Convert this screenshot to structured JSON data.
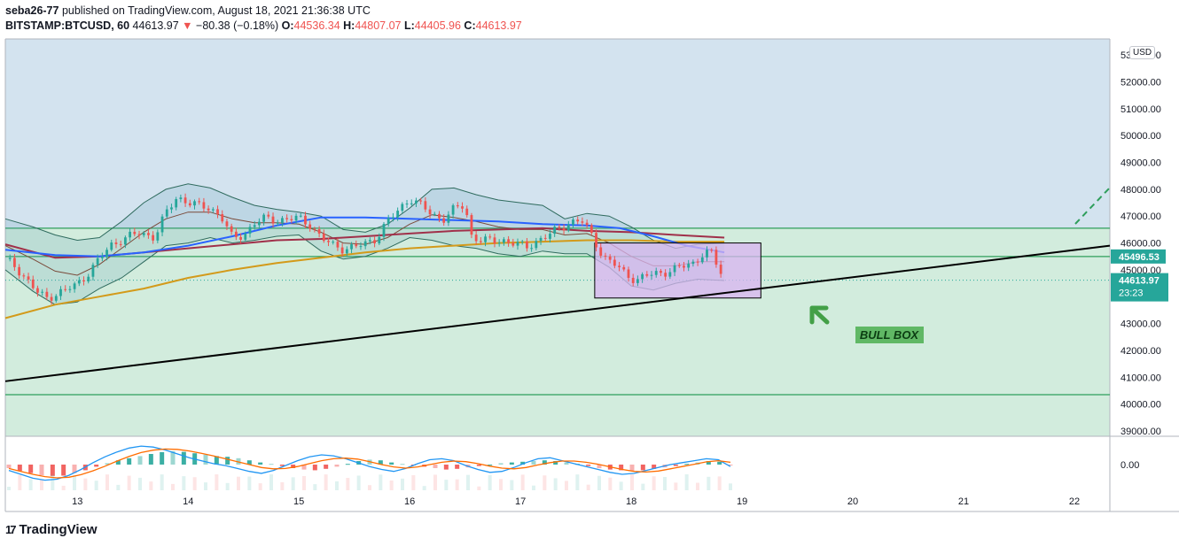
{
  "header": {
    "author": "seba26-77",
    "published_text": " published on TradingView.com, August 18, 2021 21:36:38 UTC",
    "symbol": "BITSTAMP:BTCUSD, 60",
    "price": "44613.97",
    "change_arrow": "▼",
    "change": "−80.38 (−0.18%)",
    "o_label": "O:",
    "o_value": "44536.34",
    "h_label": "H:",
    "h_value": "44807.07",
    "l_label": "L:",
    "l_value": "44405.96",
    "c_label": "C:",
    "c_value": "44613.97"
  },
  "price_scale": {
    "currency_label": "USD",
    "current_price_label": "44613.97",
    "countdown": "23:23",
    "level_label": "45496.53"
  },
  "annotations": {
    "bull_box_text": "BULL BOX"
  },
  "footer": {
    "logo_text": "TradingView"
  },
  "colors": {
    "pane_upper": "#d3e3ef",
    "pane_lower": "#d2ecdd",
    "bull": "#26a69a",
    "bear": "#ef5350",
    "bull_box": "#d8b4f0",
    "ma_blue": "#2962ff",
    "ma_maroon": "#a0304a",
    "ma_gold": "#d39a1a",
    "trendline": "#000000",
    "arrow": "#43a047"
  },
  "chart_data": {
    "type": "line",
    "symbol": "BITSTAMP:BTCUSD",
    "interval": "60",
    "x_ticks": [
      "13",
      "14",
      "15",
      "16",
      "17",
      "18",
      "19",
      "20",
      "21",
      "22"
    ],
    "y_ticks": [
      39000,
      40000,
      41000,
      42000,
      43000,
      44000,
      45000,
      46000,
      47000,
      48000,
      49000,
      50000,
      51000,
      52000,
      53000
    ],
    "y_tick_labels": [
      "39000.00",
      "40000.00",
      "41000.00",
      "42000.00",
      "43000.00",
      "44000.00",
      "45000.00",
      "46000.00",
      "47000.00",
      "48000.00",
      "49000.00",
      "50000.00",
      "51000.00",
      "52000.00",
      "53000.00"
    ],
    "ylim": [
      38800,
      53600
    ],
    "xlim": [
      12.35,
      22.32
    ],
    "close_path": {
      "x": [
        12.35,
        12.45,
        12.55,
        12.65,
        12.72,
        12.8,
        12.9,
        13.0,
        13.1,
        13.2,
        13.3,
        13.4,
        13.55,
        13.7,
        13.8,
        13.9,
        14.0,
        14.1,
        14.2,
        14.3,
        14.4,
        14.5,
        14.6,
        14.7,
        14.8,
        14.9,
        15.0,
        15.1,
        15.2,
        15.3,
        15.4,
        15.5,
        15.6,
        15.7,
        15.8,
        15.9,
        16.0,
        16.1,
        16.2,
        16.3,
        16.4,
        16.5,
        16.55,
        16.65,
        16.75,
        16.85,
        16.95,
        17.05,
        17.15,
        17.25,
        17.35,
        17.45,
        17.55,
        17.65,
        17.75,
        17.85,
        17.95,
        18.05,
        18.15,
        18.25,
        18.35,
        18.45,
        18.55,
        18.65,
        18.72,
        18.78,
        18.84
      ],
      "y": [
        45400,
        45100,
        44600,
        44100,
        43950,
        44100,
        44250,
        44450,
        44900,
        45400,
        45900,
        46150,
        46350,
        46250,
        47100,
        47700,
        47550,
        47350,
        47300,
        47000,
        46150,
        46300,
        46750,
        46900,
        46850,
        46900,
        46900,
        46700,
        46200,
        45900,
        45800,
        45850,
        45950,
        46200,
        46800,
        47200,
        47700,
        47400,
        47050,
        46900,
        47250,
        47400,
        46300,
        46100,
        46050,
        46100,
        46000,
        45800,
        46100,
        46300,
        46500,
        46800,
        46850,
        46200,
        45500,
        45200,
        44800,
        44650,
        44800,
        44850,
        45000,
        45100,
        45200,
        45650,
        45650,
        45100,
        44614
      ]
    },
    "indicators": {
      "ma_blue": {
        "x": [
          12.35,
          12.8,
          13.2,
          13.6,
          14.0,
          14.4,
          14.8,
          15.2,
          15.6,
          16.0,
          16.4,
          16.8,
          17.2,
          17.6,
          17.9,
          18.2,
          18.5,
          18.84
        ],
        "y": [
          45750,
          45550,
          45500,
          45650,
          45900,
          46250,
          46650,
          46950,
          46950,
          46900,
          46850,
          46800,
          46700,
          46650,
          46550,
          46250,
          45900,
          45650
        ]
      },
      "ma_maroon": {
        "x": [
          12.35,
          12.8,
          13.2,
          13.6,
          14.0,
          14.4,
          14.8,
          15.2,
          15.6,
          16.0,
          16.4,
          16.8,
          17.2,
          17.6,
          18.0,
          18.4,
          18.84
        ],
        "y": [
          45950,
          45450,
          45500,
          45650,
          45800,
          45950,
          46100,
          46150,
          46250,
          46350,
          46450,
          46500,
          46550,
          46450,
          46400,
          46300,
          46200
        ]
      },
      "ma_gold": {
        "x": [
          12.35,
          12.8,
          13.2,
          13.6,
          14.0,
          14.4,
          14.8,
          15.2,
          15.6,
          16.0,
          16.4,
          16.8,
          17.2,
          17.6,
          18.0,
          18.4,
          18.84
        ],
        "y": [
          43200,
          43700,
          44000,
          44300,
          44700,
          45000,
          45250,
          45450,
          45650,
          45800,
          45900,
          46000,
          46050,
          46100,
          46100,
          46050,
          46050
        ]
      },
      "bb_upper": {
        "x": [
          12.35,
          12.6,
          12.8,
          13.0,
          13.2,
          13.4,
          13.6,
          13.8,
          14.0,
          14.2,
          14.4,
          14.6,
          14.8,
          15.0,
          15.2,
          15.4,
          15.6,
          15.8,
          16.0,
          16.2,
          16.4,
          16.6,
          16.8,
          17.0,
          17.2,
          17.4,
          17.6,
          17.8,
          18.0,
          18.2,
          18.4,
          18.6,
          18.84
        ],
        "y": [
          46900,
          46600,
          46300,
          46100,
          46200,
          46800,
          47500,
          48000,
          48200,
          48050,
          47700,
          47400,
          47250,
          47150,
          47000,
          46500,
          46400,
          46700,
          47300,
          48000,
          48050,
          47800,
          47600,
          47500,
          47400,
          46900,
          47100,
          47000,
          46600,
          46100,
          45800,
          45950,
          46000
        ]
      },
      "bb_lower": {
        "x": [
          12.35,
          12.6,
          12.8,
          13.0,
          13.2,
          13.4,
          13.6,
          13.8,
          14.0,
          14.2,
          14.4,
          14.6,
          14.8,
          15.0,
          15.2,
          15.4,
          15.6,
          15.8,
          16.0,
          16.2,
          16.4,
          16.6,
          16.8,
          17.0,
          17.2,
          17.4,
          17.6,
          17.8,
          18.0,
          18.2,
          18.4,
          18.6,
          18.84
        ],
        "y": [
          45000,
          44200,
          43700,
          43800,
          44300,
          44700,
          45300,
          45900,
          46000,
          46200,
          46000,
          46100,
          46250,
          46300,
          45700,
          45400,
          45500,
          45800,
          46200,
          46100,
          45900,
          45800,
          45600,
          45500,
          45700,
          45600,
          45600,
          45100,
          44400,
          44250,
          44500,
          44650,
          44600
        ]
      },
      "bb_mid": {
        "x": [
          12.35,
          12.6,
          12.8,
          13.0,
          13.2,
          13.4,
          13.6,
          13.8,
          14.0,
          14.2,
          14.4,
          14.6,
          14.8,
          15.0,
          15.2,
          15.4,
          15.6,
          15.8,
          16.0,
          16.2,
          16.4,
          16.6,
          16.8,
          17.0,
          17.2,
          17.4,
          17.6,
          17.8,
          18.0,
          18.2,
          18.4,
          18.6,
          18.84
        ],
        "y": [
          45900,
          45400,
          44950,
          44800,
          45200,
          45800,
          46400,
          46900,
          47150,
          47150,
          46900,
          46750,
          46750,
          46700,
          46400,
          46000,
          45950,
          46200,
          46700,
          47050,
          46950,
          46800,
          46600,
          46500,
          46500,
          46300,
          46350,
          46000,
          45500,
          45150,
          45150,
          45300,
          45300
        ]
      }
    },
    "horizontal_levels": [
      46550,
      45496.53,
      44613.97,
      40350
    ],
    "trendline": {
      "from": [
        12.35,
        40850
      ],
      "to": [
        22.32,
        45900
      ]
    },
    "bull_box": {
      "x": [
        17.67,
        19.17
      ],
      "y": [
        43950,
        46000
      ]
    },
    "zones": {
      "upper_blue_above": 46550,
      "lower_green_below": 46550
    },
    "macd_pane": {
      "y_tick_labels": [
        "0.00"
      ],
      "histogram": [
        -25,
        -45,
        -60,
        -75,
        -80,
        -78,
        -60,
        -40,
        -15,
        10,
        30,
        45,
        60,
        75,
        88,
        95,
        90,
        80,
        70,
        60,
        55,
        45,
        30,
        15,
        5,
        -10,
        -25,
        -35,
        -40,
        -30,
        -15,
        5,
        25,
        35,
        30,
        15,
        5,
        -5,
        -15,
        -25,
        -35,
        -30,
        -20,
        -10,
        0,
        10,
        15,
        20,
        25,
        30,
        25,
        15,
        5,
        -10,
        -25,
        -35,
        -40,
        -45,
        -40,
        -30,
        -20,
        -10,
        5,
        15,
        25,
        20,
        -5
      ],
      "macd_line": [
        -30,
        -50,
        -70,
        -80,
        -75,
        -55,
        -25,
        10,
        40,
        65,
        85,
        95,
        90,
        75,
        55,
        35,
        20,
        5,
        -5,
        -20,
        -35,
        -45,
        -30,
        -5,
        20,
        40,
        50,
        45,
        30,
        10,
        -10,
        -25,
        -35,
        -20,
        5,
        25,
        30,
        20,
        -5,
        -25,
        -40,
        -35,
        -15,
        10,
        30,
        35,
        20,
        5,
        -10,
        -25,
        -40,
        -50,
        -45,
        -30,
        -15,
        0,
        10,
        20,
        30,
        25,
        -10
      ],
      "signal_line": [
        -20,
        -35,
        -50,
        -62,
        -68,
        -65,
        -52,
        -32,
        -8,
        18,
        42,
        62,
        74,
        80,
        78,
        70,
        58,
        45,
        30,
        15,
        0,
        -15,
        -22,
        -20,
        -10,
        5,
        20,
        30,
        33,
        28,
        15,
        0,
        -12,
        -18,
        -12,
        0,
        12,
        18,
        15,
        5,
        -8,
        -18,
        -22,
        -15,
        -2,
        10,
        18,
        18,
        12,
        2,
        -12,
        -25,
        -35,
        -38,
        -33,
        -22,
        -10,
        2,
        14,
        20,
        12
      ]
    }
  }
}
